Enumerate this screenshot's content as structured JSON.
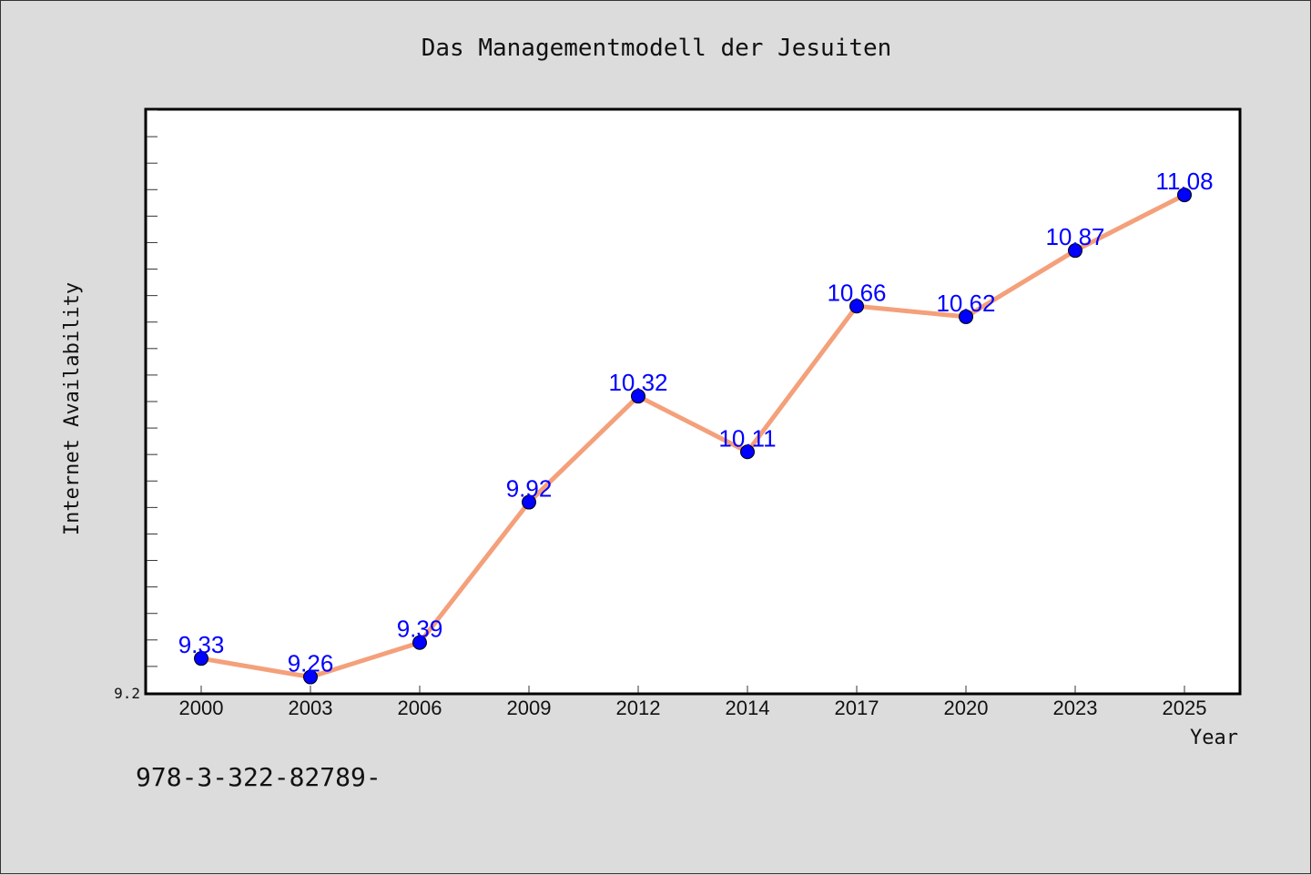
{
  "chart_data": {
    "type": "line",
    "title": "Das Managementmodell der Jesuiten",
    "xlabel": "Year",
    "ylabel": "Internet Availability",
    "categories": [
      "2000",
      "2003",
      "2006",
      "2009",
      "2012",
      "2014",
      "2017",
      "2020",
      "2023",
      "2025"
    ],
    "series": [
      {
        "values": [
          9.33,
          9.26,
          9.39,
          9.92,
          10.32,
          10.11,
          10.66,
          10.62,
          10.87,
          11.08
        ]
      }
    ],
    "data_labels": [
      "9.33",
      "9.26",
      "9.39",
      "9.92",
      "10.32",
      "10.11",
      "10.66",
      "10.62",
      "10.87",
      "11.08"
    ],
    "ylim": [
      9.2,
      11.4
    ],
    "y_tick_label": "9.2",
    "grid": false,
    "colors": {
      "line": "#f4a07a",
      "marker": "#0000ff",
      "label": "#0000ff",
      "background": "#dcdcdc",
      "plot_background": "#ffffff"
    }
  },
  "footnote": "978-3-322-82789-"
}
